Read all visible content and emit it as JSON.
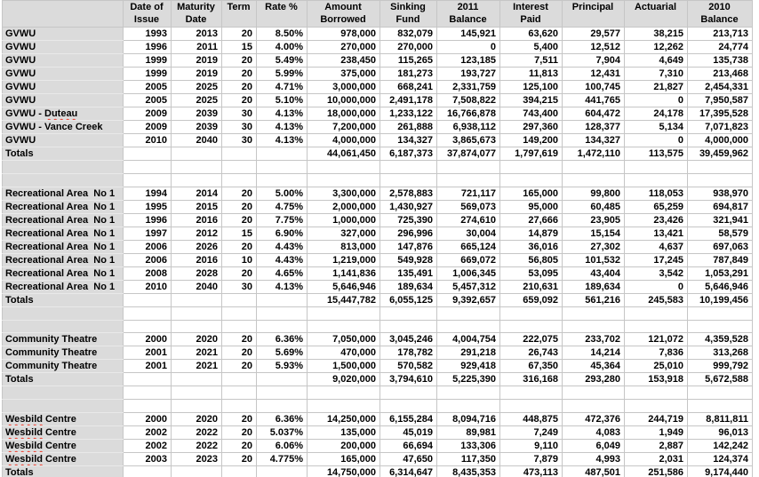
{
  "colors": {
    "header_bg": "#dbdbdb",
    "row_label_bg": "#dbdbdb",
    "gridline": "#c6c6c6",
    "text": "#000000",
    "spellcheck_underline": "#ee3b2b"
  },
  "table": {
    "columns": [
      "",
      "Date of\nIssue",
      "Maturity\nDate",
      "Term",
      "Rate %",
      "Amount\nBorrowed",
      "Sinking\nFund",
      "2011\nBalance",
      "Interest\nPaid",
      "Principal",
      "Actuarial",
      "2010\nBalance"
    ],
    "sections": [
      {
        "rows": [
          {
            "entity": [
              {
                "text": "GVWU"
              }
            ],
            "cells": [
              "1993",
              "2013",
              "20",
              "8.50%",
              "978,000",
              "832,079",
              "145,921",
              "63,620",
              "29,577",
              "38,215",
              "213,713"
            ]
          },
          {
            "entity": [
              {
                "text": "GVWU"
              }
            ],
            "cells": [
              "1996",
              "2011",
              "15",
              "4.00%",
              "270,000",
              "270,000",
              "0",
              "5,400",
              "12,512",
              "12,262",
              "24,774"
            ]
          },
          {
            "entity": [
              {
                "text": "GVWU"
              }
            ],
            "cells": [
              "1999",
              "2019",
              "20",
              "5.49%",
              "238,450",
              "115,265",
              "123,185",
              "7,511",
              "7,904",
              "4,649",
              "135,738"
            ]
          },
          {
            "entity": [
              {
                "text": "GVWU"
              }
            ],
            "cells": [
              "1999",
              "2019",
              "20",
              "5.99%",
              "375,000",
              "181,273",
              "193,727",
              "11,813",
              "12,431",
              "7,310",
              "213,468"
            ]
          },
          {
            "entity": [
              {
                "text": "GVWU"
              }
            ],
            "cells": [
              "2005",
              "2025",
              "20",
              "4.71%",
              "3,000,000",
              "668,241",
              "2,331,759",
              "125,100",
              "100,745",
              "21,827",
              "2,454,331"
            ]
          },
          {
            "entity": [
              {
                "text": "GVWU"
              }
            ],
            "cells": [
              "2005",
              "2025",
              "20",
              "5.10%",
              "10,000,000",
              "2,491,178",
              "7,508,822",
              "394,215",
              "441,765",
              "0",
              "7,950,587"
            ]
          },
          {
            "entity": [
              {
                "text": "GVWU - "
              },
              {
                "text": "Duteau",
                "misspelled": true
              }
            ],
            "cells": [
              "2009",
              "2039",
              "30",
              "4.13%",
              "18,000,000",
              "1,233,122",
              "16,766,878",
              "743,400",
              "604,472",
              "24,178",
              "17,395,528"
            ]
          },
          {
            "entity": [
              {
                "text": "GVWU - Vance Creek"
              }
            ],
            "cells": [
              "2009",
              "2039",
              "30",
              "4.13%",
              "7,200,000",
              "261,888",
              "6,938,112",
              "297,360",
              "128,377",
              "5,134",
              "7,071,823"
            ]
          },
          {
            "entity": [
              {
                "text": "GVWU"
              }
            ],
            "cells": [
              "2010",
              "2040",
              "30",
              "4.13%",
              "4,000,000",
              "134,327",
              "3,865,673",
              "149,200",
              "134,327",
              "0",
              "4,000,000"
            ]
          }
        ],
        "totals": {
          "label": "Totals",
          "cells": [
            "",
            "",
            "",
            "",
            "44,061,450",
            "6,187,373",
            "37,874,077",
            "1,797,619",
            "1,472,110",
            "113,575",
            "39,459,962"
          ]
        }
      },
      {
        "rows": [
          {
            "entity": [
              {
                "text": "Recreational Area  No 1"
              }
            ],
            "cells": [
              "1994",
              "2014",
              "20",
              "5.00%",
              "3,300,000",
              "2,578,883",
              "721,117",
              "165,000",
              "99,800",
              "118,053",
              "938,970"
            ]
          },
          {
            "entity": [
              {
                "text": "Recreational Area  No 1"
              }
            ],
            "cells": [
              "1995",
              "2015",
              "20",
              "4.75%",
              "2,000,000",
              "1,430,927",
              "569,073",
              "95,000",
              "60,485",
              "65,259",
              "694,817"
            ]
          },
          {
            "entity": [
              {
                "text": "Recreational Area  No 1"
              }
            ],
            "cells": [
              "1996",
              "2016",
              "20",
              "7.75%",
              "1,000,000",
              "725,390",
              "274,610",
              "27,666",
              "23,905",
              "23,426",
              "321,941"
            ]
          },
          {
            "entity": [
              {
                "text": "Recreational Area  No 1"
              }
            ],
            "cells": [
              "1997",
              "2012",
              "15",
              "6.90%",
              "327,000",
              "296,996",
              "30,004",
              "14,879",
              "15,154",
              "13,421",
              "58,579"
            ]
          },
          {
            "entity": [
              {
                "text": "Recreational Area  No 1"
              }
            ],
            "cells": [
              "2006",
              "2026",
              "20",
              "4.43%",
              "813,000",
              "147,876",
              "665,124",
              "36,016",
              "27,302",
              "4,637",
              "697,063"
            ]
          },
          {
            "entity": [
              {
                "text": "Recreational Area  No 1"
              }
            ],
            "cells": [
              "2006",
              "2016",
              "10",
              "4.43%",
              "1,219,000",
              "549,928",
              "669,072",
              "56,805",
              "101,532",
              "17,245",
              "787,849"
            ]
          },
          {
            "entity": [
              {
                "text": "Recreational Area  No 1"
              }
            ],
            "cells": [
              "2008",
              "2028",
              "20",
              "4.65%",
              "1,141,836",
              "135,491",
              "1,006,345",
              "53,095",
              "43,404",
              "3,542",
              "1,053,291"
            ]
          },
          {
            "entity": [
              {
                "text": "Recreational Area  No 1"
              }
            ],
            "cells": [
              "2010",
              "2040",
              "30",
              "4.13%",
              "5,646,946",
              "189,634",
              "5,457,312",
              "210,631",
              "189,634",
              "0",
              "5,646,946"
            ]
          }
        ],
        "totals": {
          "label": "Totals",
          "cells": [
            "",
            "",
            "",
            "",
            "15,447,782",
            "6,055,125",
            "9,392,657",
            "659,092",
            "561,216",
            "245,583",
            "10,199,456"
          ]
        }
      },
      {
        "rows": [
          {
            "entity": [
              {
                "text": "Community Theatre"
              }
            ],
            "cells": [
              "2000",
              "2020",
              "20",
              "6.36%",
              "7,050,000",
              "3,045,246",
              "4,004,754",
              "222,075",
              "233,702",
              "121,072",
              "4,359,528"
            ]
          },
          {
            "entity": [
              {
                "text": "Community Theatre"
              }
            ],
            "cells": [
              "2001",
              "2021",
              "20",
              "5.69%",
              "470,000",
              "178,782",
              "291,218",
              "26,743",
              "14,214",
              "7,836",
              "313,268"
            ]
          },
          {
            "entity": [
              {
                "text": "Community Theatre"
              }
            ],
            "cells": [
              "2001",
              "2021",
              "20",
              "5.93%",
              "1,500,000",
              "570,582",
              "929,418",
              "67,350",
              "45,364",
              "25,010",
              "999,792"
            ]
          }
        ],
        "totals": {
          "label": "Totals",
          "cells": [
            "",
            "",
            "",
            "",
            "9,020,000",
            "3,794,610",
            "5,225,390",
            "316,168",
            "293,280",
            "153,918",
            "5,672,588"
          ]
        }
      },
      {
        "rows": [
          {
            "entity": [
              {
                "text": "Wesbild",
                "misspelled": true
              },
              {
                "text": " Centre"
              }
            ],
            "cells": [
              "2000",
              "2020",
              "20",
              "6.36%",
              "14,250,000",
              "6,155,284",
              "8,094,716",
              "448,875",
              "472,376",
              "244,719",
              "8,811,811"
            ]
          },
          {
            "entity": [
              {
                "text": "Wesbild",
                "misspelled": true
              },
              {
                "text": " Centre"
              }
            ],
            "cells": [
              "2002",
              "2022",
              "20",
              "5.037%",
              "135,000",
              "45,019",
              "89,981",
              "7,249",
              "4,083",
              "1,949",
              "96,013"
            ]
          },
          {
            "entity": [
              {
                "text": "Wesbild",
                "misspelled": true
              },
              {
                "text": " Centre"
              }
            ],
            "cells": [
              "2002",
              "2022",
              "20",
              "6.06%",
              "200,000",
              "66,694",
              "133,306",
              "9,110",
              "6,049",
              "2,887",
              "142,242"
            ]
          },
          {
            "entity": [
              {
                "text": "Wesbild",
                "misspelled": true
              },
              {
                "text": " Centre"
              }
            ],
            "cells": [
              "2003",
              "2023",
              "20",
              "4.775%",
              "165,000",
              "47,650",
              "117,350",
              "7,879",
              "4,993",
              "2,031",
              "124,374"
            ]
          }
        ],
        "totals": {
          "label": "Totals",
          "cells": [
            "",
            "",
            "",
            "",
            "14,750,000",
            "6,314,647",
            "8,435,353",
            "473,113",
            "487,501",
            "251,586",
            "9,174,440"
          ]
        }
      }
    ]
  }
}
